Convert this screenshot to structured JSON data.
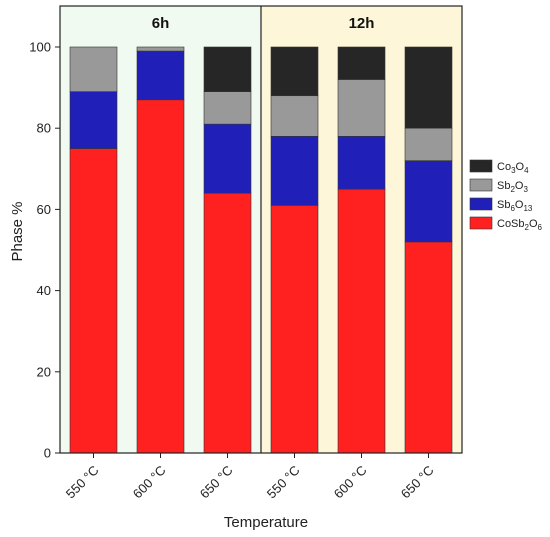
{
  "chart_data": {
    "type": "bar",
    "stacked": true,
    "xlabel": "Temperature",
    "ylabel": "Phase %",
    "ylim": [
      0,
      100
    ],
    "yticks": [
      0,
      20,
      40,
      60,
      80,
      100
    ],
    "categories": [
      "550 °C",
      "600 °C",
      "650 °C",
      "550 °C",
      "600 °C",
      "650 °C"
    ],
    "groups": [
      {
        "label": "6h",
        "start": 0,
        "end": 2,
        "color": "#f0faf0"
      },
      {
        "label": "12h",
        "start": 3,
        "end": 5,
        "color": "#fdf6d8"
      }
    ],
    "series": [
      {
        "name": "CoSb2O6",
        "base": "CoSb",
        "sub1": "2",
        "mid": "O",
        "sub2": "6",
        "color": "#ff2020",
        "values": [
          75,
          87,
          64,
          61,
          65,
          52
        ]
      },
      {
        "name": "Sb6O13",
        "base": "Sb",
        "sub1": "6",
        "mid": "O",
        "sub2": "13",
        "color": "#2020b8",
        "values": [
          14,
          12,
          17,
          17,
          13,
          20
        ]
      },
      {
        "name": "Sb2O3",
        "base": "Sb",
        "sub1": "2",
        "mid": "O",
        "sub2": "3",
        "color": "#999999",
        "values": [
          11,
          1,
          8,
          10,
          14,
          8
        ]
      },
      {
        "name": "Co3O4",
        "base": "Co",
        "sub1": "3",
        "mid": "O",
        "sub2": "4",
        "color": "#262626",
        "values": [
          0,
          0,
          11,
          12,
          8,
          20
        ]
      }
    ],
    "legend_position": "right"
  }
}
